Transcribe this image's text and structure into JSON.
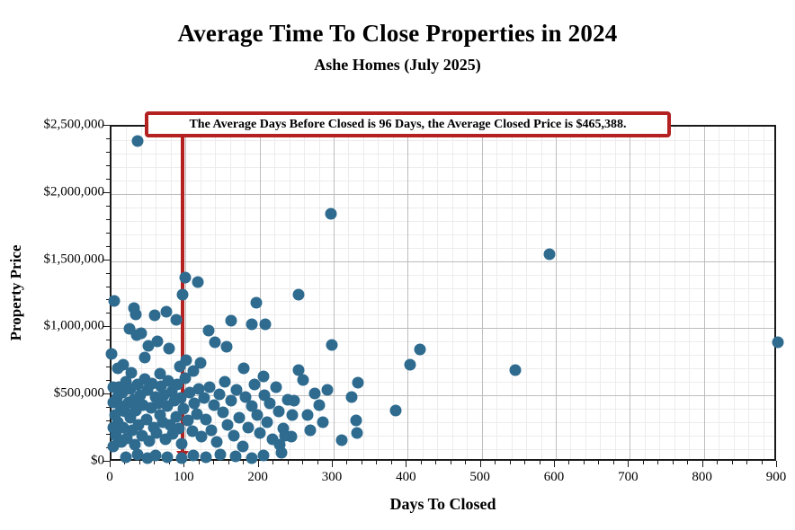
{
  "title": "Average Time To Close Properties in 2024",
  "subtitle": "Ashe Homes (July 2025)",
  "annotation": {
    "text": "The Average Days Before Closed is 96 Days, the Average Closed Price is $465,388.",
    "avg_days": 96,
    "avg_price_label": "$465,388"
  },
  "colors": {
    "point": "#2e6b8f",
    "accent_red": "#b32121",
    "grid_major": "#bdbdbd",
    "grid_minor": "#ececec",
    "frame": "#1a1a1a"
  },
  "chart_data": {
    "type": "scatter",
    "title": "Average Time To Close Properties in 2024",
    "subtitle": "Ashe Homes (July 2025)",
    "xlabel": "Days To Closed",
    "ylabel": "Property Price",
    "xlim": [
      0,
      900
    ],
    "ylim": [
      0,
      2500000
    ],
    "x_major_ticks": [
      0,
      100,
      200,
      300,
      400,
      500,
      600,
      700,
      800,
      900
    ],
    "x_tick_labels": [
      "0",
      "100",
      "200",
      "300",
      "400",
      "500",
      "600",
      "700",
      "800",
      "900"
    ],
    "x_minor_step": 20,
    "y_major_ticks": [
      0,
      500000,
      1000000,
      1500000,
      2000000,
      2500000
    ],
    "y_tick_labels": [
      "$0",
      "$500,000",
      "$1,000,000",
      "$1,500,000",
      "$2,000,000",
      "$2,500,000"
    ],
    "y_minor_step": 100000,
    "grid": "on",
    "legend": "none",
    "avg_line_x": 96,
    "points": [
      [
        35,
        2390000
      ],
      [
        296,
        1852000
      ],
      [
        591,
        1548000
      ],
      [
        900,
        893000
      ],
      [
        99,
        1375000
      ],
      [
        117,
        1345000
      ],
      [
        96,
        1253000
      ],
      [
        253,
        1252000
      ],
      [
        4,
        1205000
      ],
      [
        195,
        1190000
      ],
      [
        190,
        1030000
      ],
      [
        208,
        1030000
      ],
      [
        298,
        875000
      ],
      [
        417,
        842000
      ],
      [
        403,
        731000
      ],
      [
        545,
        688000
      ],
      [
        333,
        596000
      ],
      [
        324,
        486000
      ],
      [
        384,
        386000
      ],
      [
        330,
        311000
      ],
      [
        332,
        219000
      ],
      [
        311,
        166000
      ],
      [
        33,
        1102000
      ],
      [
        58,
        1094000
      ],
      [
        74,
        1126000
      ],
      [
        88,
        1061000
      ],
      [
        131,
        981000
      ],
      [
        24,
        996000
      ],
      [
        40,
        961000
      ],
      [
        162,
        1056000
      ],
      [
        30,
        1147000
      ],
      [
        0,
        810000
      ],
      [
        16,
        731000
      ],
      [
        34,
        946000
      ],
      [
        50,
        871000
      ],
      [
        62,
        901000
      ],
      [
        78,
        846000
      ],
      [
        101,
        762000
      ],
      [
        111,
        683000
      ],
      [
        45,
        781000
      ],
      [
        8,
        701000
      ],
      [
        27,
        668000
      ],
      [
        140,
        896000
      ],
      [
        155,
        861000
      ],
      [
        92,
        716000
      ],
      [
        120,
        741000
      ],
      [
        65,
        661000
      ],
      [
        178,
        701000
      ],
      [
        205,
        641000
      ],
      [
        3,
        121000
      ],
      [
        2,
        261000
      ],
      [
        2,
        451000
      ],
      [
        3,
        561000
      ],
      [
        5,
        351000
      ],
      [
        6,
        201000
      ],
      [
        7,
        481000
      ],
      [
        9,
        301000
      ],
      [
        10,
        561000
      ],
      [
        12,
        421000
      ],
      [
        13,
        151000
      ],
      [
        15,
        521000
      ],
      [
        16,
        261000
      ],
      [
        18,
        381000
      ],
      [
        20,
        601000
      ],
      [
        21,
        181000
      ],
      [
        23,
        451000
      ],
      [
        25,
        331000
      ],
      [
        26,
        551000
      ],
      [
        28,
        241000
      ],
      [
        30,
        471000
      ],
      [
        31,
        131000
      ],
      [
        33,
        391000
      ],
      [
        35,
        581000
      ],
      [
        37,
        281000
      ],
      [
        39,
        501000
      ],
      [
        41,
        201000
      ],
      [
        43,
        431000
      ],
      [
        45,
        621000
      ],
      [
        47,
        321000
      ],
      [
        49,
        541000
      ],
      [
        51,
        161000
      ],
      [
        53,
        411000
      ],
      [
        55,
        591000
      ],
      [
        57,
        261000
      ],
      [
        59,
        491000
      ],
      [
        61,
        221000
      ],
      [
        63,
        441000
      ],
      [
        65,
        351000
      ],
      [
        67,
        571000
      ],
      [
        69,
        301000
      ],
      [
        71,
        501000
      ],
      [
        73,
        171000
      ],
      [
        75,
        421000
      ],
      [
        77,
        611000
      ],
      [
        79,
        281000
      ],
      [
        81,
        531000
      ],
      [
        83,
        211000
      ],
      [
        85,
        461000
      ],
      [
        87,
        341000
      ],
      [
        89,
        581000
      ],
      [
        91,
        251000
      ],
      [
        93,
        481000
      ],
      [
        95,
        141000
      ],
      [
        97,
        401000
      ],
      [
        100,
        631000
      ],
      [
        103,
        311000
      ],
      [
        106,
        521000
      ],
      [
        109,
        231000
      ],
      [
        112,
        441000
      ],
      [
        115,
        361000
      ],
      [
        118,
        551000
      ],
      [
        20,
        41000
      ],
      [
        35,
        61000
      ],
      [
        48,
        31000
      ],
      [
        60,
        56000
      ],
      [
        75,
        41000
      ],
      [
        95,
        31000
      ],
      [
        110,
        56000
      ],
      [
        128,
        41000
      ],
      [
        147,
        61000
      ],
      [
        168,
        46000
      ],
      [
        190,
        31000
      ],
      [
        205,
        56000
      ],
      [
        230,
        76000
      ],
      [
        122,
        191000
      ],
      [
        125,
        481000
      ],
      [
        128,
        321000
      ],
      [
        132,
        561000
      ],
      [
        135,
        241000
      ],
      [
        139,
        431000
      ],
      [
        142,
        151000
      ],
      [
        146,
        511000
      ],
      [
        150,
        371000
      ],
      [
        153,
        601000
      ],
      [
        157,
        281000
      ],
      [
        161,
        461000
      ],
      [
        165,
        201000
      ],
      [
        169,
        541000
      ],
      [
        173,
        331000
      ],
      [
        177,
        121000
      ],
      [
        181,
        491000
      ],
      [
        185,
        261000
      ],
      [
        189,
        421000
      ],
      [
        193,
        581000
      ],
      [
        197,
        351000
      ],
      [
        201,
        221000
      ],
      [
        206,
        501000
      ],
      [
        210,
        301000
      ],
      [
        214,
        441000
      ],
      [
        218,
        171000
      ],
      [
        222,
        561000
      ],
      [
        226,
        381000
      ],
      [
        232,
        251000
      ],
      [
        238,
        471000
      ],
      [
        243,
        191000
      ],
      [
        247,
        464000
      ],
      [
        253,
        691000
      ],
      [
        259,
        617000
      ],
      [
        265,
        352000
      ],
      [
        274,
        517000
      ],
      [
        280,
        431000
      ],
      [
        286,
        301000
      ],
      [
        235,
        201000
      ],
      [
        291,
        541000
      ],
      [
        244,
        351000
      ],
      [
        268,
        241000
      ],
      [
        227,
        131000
      ]
    ]
  }
}
